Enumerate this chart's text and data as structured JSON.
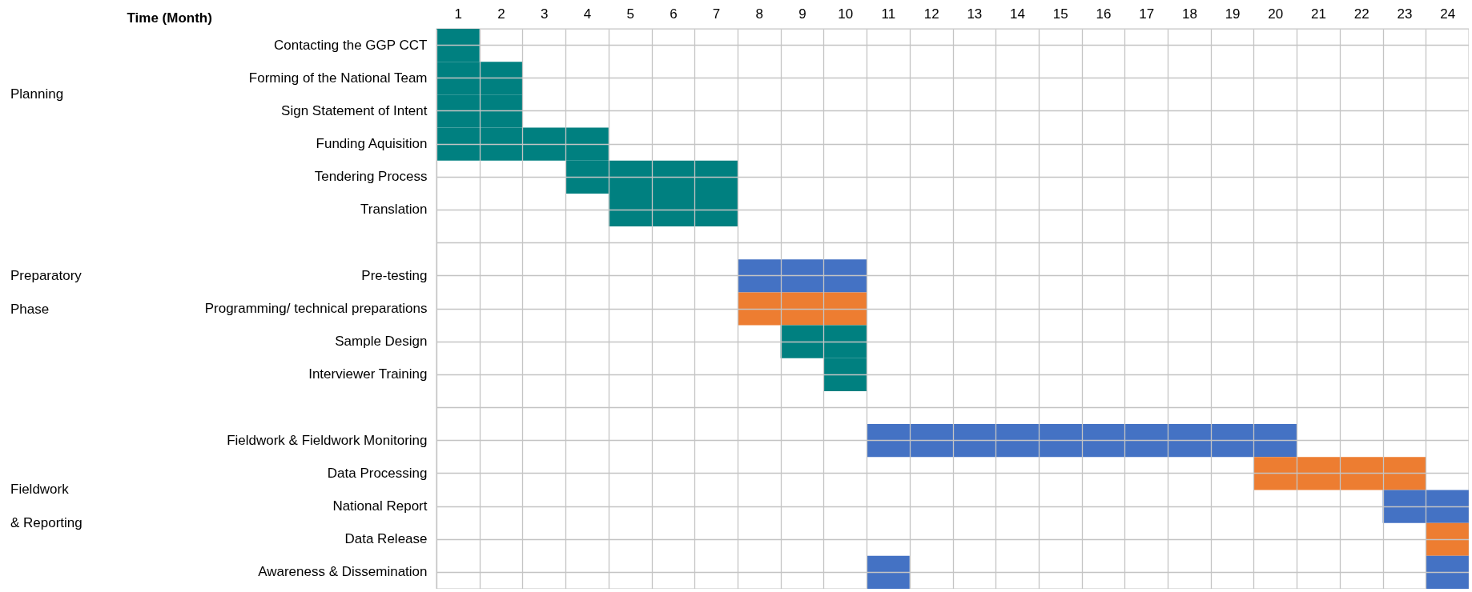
{
  "chart_data": {
    "type": "bar",
    "orientation": "horizontal",
    "xlabel": "Time (Month)",
    "categories": [
      "Contacting the GGP CCT",
      "Forming of the National Team",
      "Sign Statement of Intent",
      "Funding Aquisition",
      "Tendering Process",
      "Translation",
      null,
      "Pre-testing",
      "Programming/ technical preparations",
      "Sample Design",
      "Interviewer Training",
      null,
      "Fieldwork & Fieldwork Monitoring",
      "Data Processing",
      "National Report",
      "Data Release",
      "Awareness & Dissemination"
    ],
    "series": [
      {
        "values": [
          1,
          2,
          2,
          4,
          4,
          3,
          null,
          3,
          3,
          2,
          1,
          null,
          10,
          4,
          2,
          1,
          1
        ],
        "base": [
          0,
          0,
          0,
          0,
          3,
          4,
          null,
          7,
          7,
          8,
          9,
          null,
          10,
          19,
          22,
          23,
          10
        ],
        "colors": [
          "#008080",
          "#008080",
          "#008080",
          "#008080",
          "#008080",
          "#008080",
          null,
          "#4472c4",
          "#ed7d31",
          "#008080",
          "#008080",
          null,
          "#4472c4",
          "#ed7d31",
          "#4472c4",
          "#ed7d31",
          "#4472c4"
        ]
      },
      {
        "values": [
          null,
          null,
          null,
          null,
          null,
          null,
          null,
          null,
          null,
          null,
          null,
          null,
          null,
          null,
          null,
          null,
          1
        ],
        "base": [
          null,
          null,
          null,
          null,
          null,
          null,
          null,
          null,
          null,
          null,
          null,
          null,
          null,
          null,
          null,
          null,
          23
        ],
        "colors": [
          null,
          null,
          null,
          null,
          null,
          null,
          null,
          null,
          null,
          null,
          null,
          null,
          null,
          null,
          null,
          null,
          "#4472c4"
        ]
      }
    ],
    "xlim": [
      0,
      24
    ],
    "xticks": [
      {
        "value": 0,
        "label": null
      },
      {
        "value": 0.5,
        "label": "1"
      },
      {
        "value": 1,
        "label": null
      },
      {
        "value": 1.5,
        "label": "2"
      },
      {
        "value": 2,
        "label": null
      },
      {
        "value": 2.5,
        "label": "3"
      },
      {
        "value": 3,
        "label": null
      },
      {
        "value": 3.5,
        "label": "4"
      },
      {
        "value": 4,
        "label": null
      },
      {
        "value": 4.5,
        "label": "5"
      },
      {
        "value": 5,
        "label": null
      },
      {
        "value": 5.5,
        "label": "6"
      },
      {
        "value": 6,
        "label": null
      },
      {
        "value": 6.5,
        "label": "7"
      },
      {
        "value": 7,
        "label": null
      },
      {
        "value": 7.5,
        "label": "8"
      },
      {
        "value": 8,
        "label": null
      },
      {
        "value": 8.5,
        "label": "9"
      },
      {
        "value": 9,
        "label": null
      },
      {
        "value": 9.5,
        "label": "10"
      },
      {
        "value": 10,
        "label": null
      },
      {
        "value": 10.5,
        "label": "11"
      },
      {
        "value": 11,
        "label": null
      },
      {
        "value": 11.5,
        "label": "12"
      },
      {
        "value": 12,
        "label": null
      },
      {
        "value": 12.5,
        "label": "13"
      },
      {
        "value": 13,
        "label": null
      },
      {
        "value": 13.5,
        "label": "14"
      },
      {
        "value": 14,
        "label": null
      },
      {
        "value": 14.5,
        "label": "15"
      },
      {
        "value": 15,
        "label": null
      },
      {
        "value": 15.5,
        "label": "16"
      },
      {
        "value": 16,
        "label": null
      },
      {
        "value": 16.5,
        "label": "17"
      },
      {
        "value": 17,
        "label": null
      },
      {
        "value": 17.5,
        "label": "18"
      },
      {
        "value": 18,
        "label": null
      },
      {
        "value": 18.5,
        "label": "19"
      },
      {
        "value": 19,
        "label": null
      },
      {
        "value": 19.5,
        "label": "20"
      },
      {
        "value": 20,
        "label": null
      },
      {
        "value": 20.5,
        "label": "21"
      },
      {
        "value": 21,
        "label": null
      },
      {
        "value": 21.5,
        "label": "22"
      },
      {
        "value": 22,
        "label": null
      },
      {
        "value": 22.5,
        "label": "23"
      },
      {
        "value": 23,
        "label": null
      },
      {
        "value": 23.5,
        "label": "24"
      },
      {
        "value": 24,
        "label": null
      }
    ],
    "grid": true,
    "annotations": [
      "Planning",
      "Preparatory Phase",
      "Fieldwork & Reporting"
    ]
  }
}
